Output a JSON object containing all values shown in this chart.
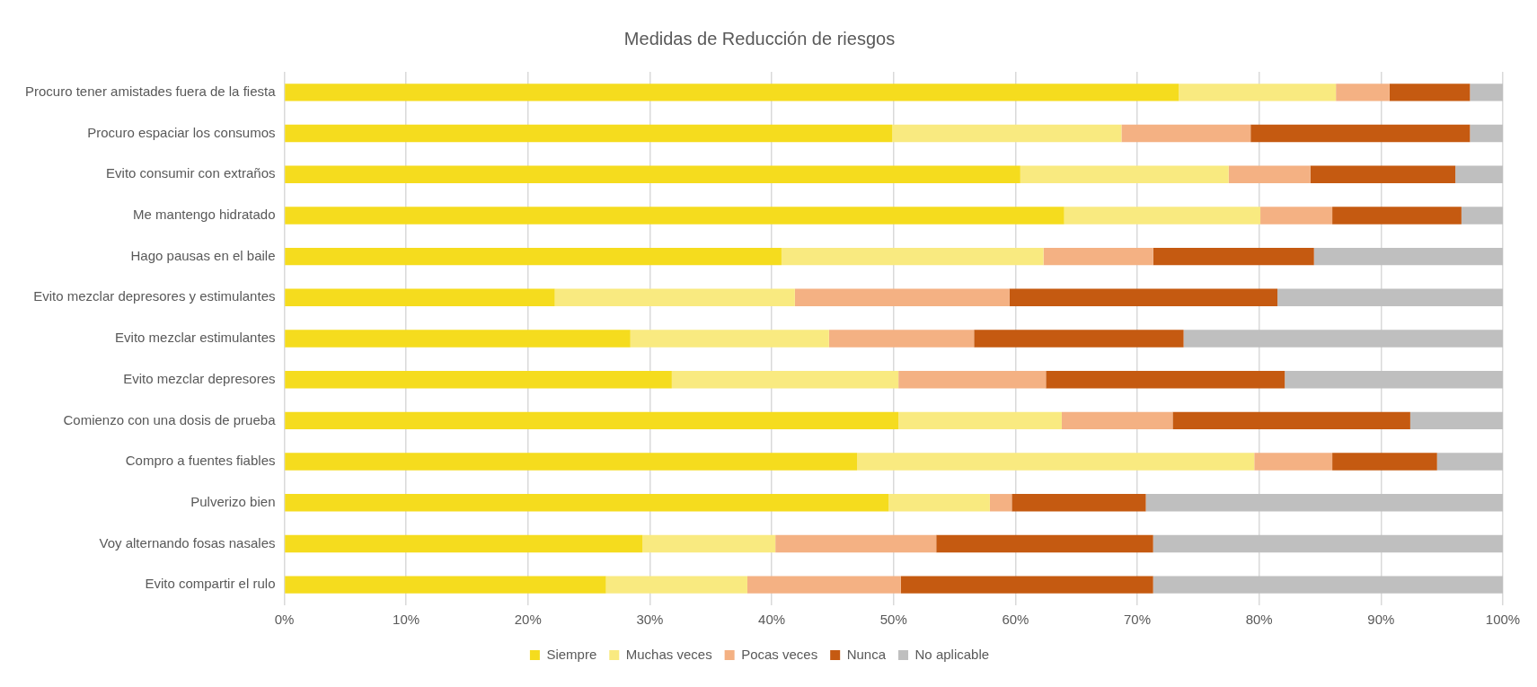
{
  "chart_data": {
    "type": "bar",
    "title": "Medidas de Reducción de riesgos",
    "orientation": "horizontal",
    "stacked": true,
    "categories": [
      "Procuro tener amistades fuera de la fiesta",
      "Procuro espaciar los consumos",
      "Evito consumir con extraños",
      "Me mantengo hidratado",
      "Hago pausas en el baile",
      "Evito mezclar depresores y estimulantes",
      "Evito mezclar estimulantes",
      "Evito mezclar depresores",
      "Comienzo con una dosis de prueba",
      "Compro a fuentes fiables",
      "Pulverizo bien",
      "Voy alternando fosas nasales",
      "Evito compartir el rulo"
    ],
    "series": [
      {
        "name": "Siempre",
        "color": "#f5dc1e",
        "values": [
          73.4,
          49.9,
          60.4,
          64.0,
          40.8,
          22.2,
          28.4,
          31.8,
          50.4,
          47.0,
          49.6,
          29.4,
          26.4
        ]
      },
      {
        "name": "Muchas veces",
        "color": "#f9ea80",
        "values": [
          12.9,
          18.8,
          17.1,
          16.1,
          21.5,
          19.7,
          16.3,
          18.6,
          13.4,
          32.6,
          8.3,
          10.9,
          11.6
        ]
      },
      {
        "name": "Pocas veces",
        "color": "#f4b183",
        "values": [
          4.4,
          10.6,
          6.7,
          5.9,
          9.0,
          17.6,
          11.9,
          12.1,
          9.1,
          6.4,
          1.8,
          13.2,
          12.6
        ]
      },
      {
        "name": "Nunca",
        "color": "#c55a11",
        "values": [
          6.6,
          18.0,
          11.9,
          10.6,
          13.2,
          22.0,
          17.2,
          19.6,
          19.5,
          8.6,
          11.0,
          17.8,
          20.7
        ]
      },
      {
        "name": "No aplicable",
        "color": "#bfbfbf",
        "values": [
          2.7,
          2.7,
          3.9,
          3.4,
          15.5,
          18.5,
          26.2,
          17.9,
          7.6,
          5.4,
          29.3,
          28.7,
          28.7
        ]
      }
    ],
    "xlim": [
      0,
      100
    ],
    "xticks": [
      {
        "value": 0,
        "label": "0%"
      },
      {
        "value": 10,
        "label": "10%"
      },
      {
        "value": 20,
        "label": "20%"
      },
      {
        "value": 30,
        "label": "30%"
      },
      {
        "value": 40,
        "label": "40%"
      },
      {
        "value": 50,
        "label": "50%"
      },
      {
        "value": 60,
        "label": "60%"
      },
      {
        "value": 70,
        "label": "70%"
      },
      {
        "value": 80,
        "label": "80%"
      },
      {
        "value": 90,
        "label": "90%"
      },
      {
        "value": 100,
        "label": "100%"
      }
    ],
    "grid": "x",
    "legend": "bottom"
  }
}
